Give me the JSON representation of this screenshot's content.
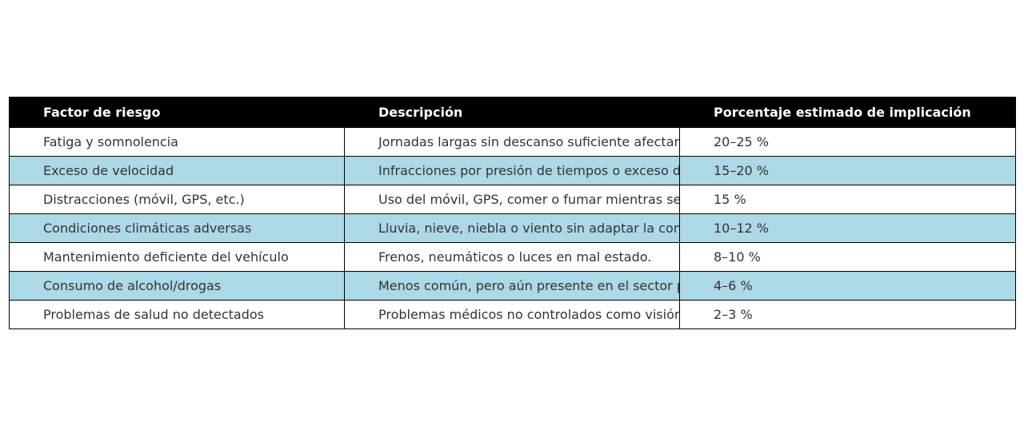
{
  "table": {
    "headers": [
      "Factor de riesgo",
      "Descripción",
      "Porcentaje estimado de implicación"
    ],
    "rows": [
      [
        "Fatiga y somnolencia",
        "Jornadas largas sin descanso suficiente afectan",
        "20–25 %"
      ],
      [
        "Exceso de velocidad",
        "Infracciones por presión de tiempos o exceso de",
        "15–20 %"
      ],
      [
        "Distracciones (móvil, GPS, etc.)",
        "Uso del móvil, GPS, comer o fumar mientras se c",
        "15 %"
      ],
      [
        "Condiciones climáticas adversas",
        "Lluvia, nieve, niebla o viento sin adaptar la cond",
        "10–12 %"
      ],
      [
        "Mantenimiento deficiente del vehículo",
        "Frenos, neumáticos o luces en mal estado.",
        "8–10 %"
      ],
      [
        "Consumo de alcohol/drogas",
        "Menos común, pero aún presente en el sector pr",
        "4–6 %"
      ],
      [
        "Problemas de salud no detectados",
        "Problemas médicos no controlados como visión",
        "2–3 %"
      ]
    ],
    "colors": {
      "header_bg": "#000000",
      "header_text": "#ffffff",
      "alt_row_bg": "#add8e6",
      "row_bg": "#ffffff"
    }
  }
}
